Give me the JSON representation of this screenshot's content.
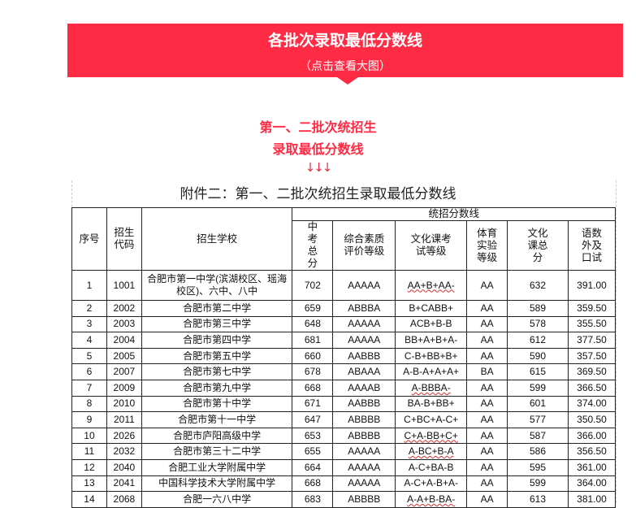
{
  "banner": {
    "title": "各批次录取最低分数线",
    "link": "（点击查看大图）",
    "color": "#ff2a43"
  },
  "subtitle": {
    "line1": "第一、二批次统招生",
    "line2": "录取最低分数线",
    "arrows": "↓↓↓"
  },
  "document": {
    "title": "附件二：第一、二批次统招生录取最低分数线",
    "headers": {
      "seq": "序号",
      "code": "招生代码",
      "school": "招生学校",
      "group": "统招分数线",
      "cols": [
        "中考总分",
        "综合素质评价等级",
        "文化课考试等级",
        "体育实验等级",
        "文化课总分",
        "语数外及口试"
      ]
    },
    "rows": [
      [
        "1",
        "1001",
        "合肥市第一中学(滨湖校区、瑶海校区)、六中、八中",
        "702",
        "AAAAA",
        "AA+B+AA-",
        "AA",
        "632",
        "391.00"
      ],
      [
        "2",
        "2002",
        "合肥市第二中学",
        "659",
        "ABBBA",
        "B+CABB+",
        "AA",
        "589",
        "359.50"
      ],
      [
        "3",
        "2003",
        "合肥市第三中学",
        "648",
        "AAAAA",
        "ACB+B-B",
        "AA",
        "578",
        "355.50"
      ],
      [
        "4",
        "2004",
        "合肥市第四中学",
        "681",
        "AAAAA",
        "BB+A+B+A-",
        "AA",
        "612",
        "377.50"
      ],
      [
        "5",
        "2005",
        "合肥市第五中学",
        "660",
        "AABBB",
        "C-B+BB+B+",
        "AA",
        "590",
        "357.50"
      ],
      [
        "6",
        "2007",
        "合肥市第七中学",
        "678",
        "ABAAA",
        "A-B-A+A+A+",
        "BA",
        "615",
        "369.50"
      ],
      [
        "7",
        "2009",
        "合肥市第九中学",
        "668",
        "AAAAB",
        "A-BBBA-",
        "AA",
        "599",
        "366.50"
      ],
      [
        "8",
        "2010",
        "合肥市第十中学",
        "671",
        "AABBB",
        "BA-B+BB+",
        "AA",
        "601",
        "374.00"
      ],
      [
        "9",
        "2011",
        "合肥市第十一中学",
        "647",
        "ABBBB",
        "C+BC+A-C+",
        "AA",
        "577",
        "350.50"
      ],
      [
        "10",
        "2026",
        "合肥市庐阳高级中学",
        "653",
        "ABBBB",
        "C+A-BB+C+",
        "AA",
        "587",
        "366.00"
      ],
      [
        "11",
        "2032",
        "合肥市第三十二中学",
        "655",
        "AAAAA",
        "A-BC+B-A",
        "AA",
        "586",
        "356.50"
      ],
      [
        "12",
        "2040",
        "合肥工业大学附属中学",
        "664",
        "AAAAA",
        "A-C+BA-B",
        "AA",
        "595",
        "361.00"
      ],
      [
        "13",
        "2041",
        "中国科学技术大学附属中学",
        "668",
        "AAAAA",
        "A-C+A-B+A-",
        "AA",
        "599",
        "364.00"
      ],
      [
        "14",
        "2068",
        "合肥一六八中学",
        "683",
        "ABBBB",
        "A-A+B-BA-",
        "AA",
        "613",
        "381.00"
      ]
    ]
  }
}
